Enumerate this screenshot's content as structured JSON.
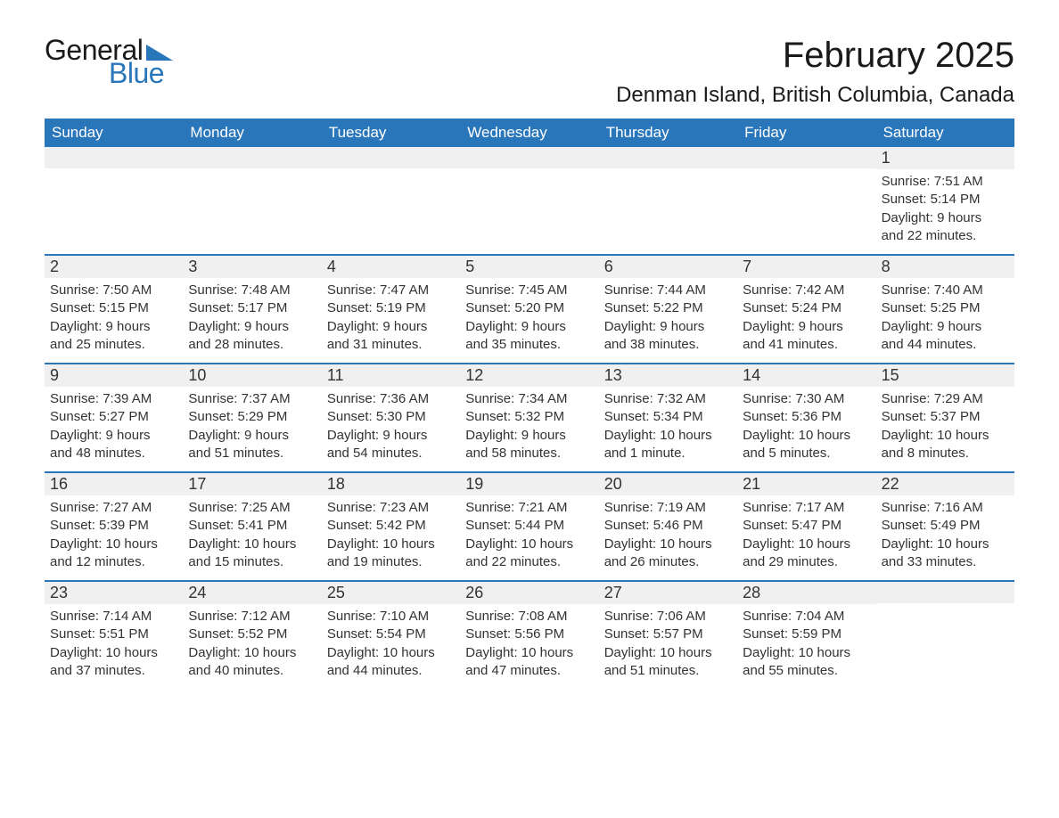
{
  "brand": {
    "word1": "General",
    "word2": "Blue"
  },
  "title": "February 2025",
  "location": "Denman Island, British Columbia, Canada",
  "colors": {
    "header_bg": "#2a76bb",
    "header_text": "#ffffff",
    "row_border": "#2a76bb",
    "date_bg": "#f0f0f0",
    "page_bg": "#ffffff",
    "text": "#222222"
  },
  "typography": {
    "title_fontsize": 40,
    "location_fontsize": 24,
    "weekday_fontsize": 17,
    "date_fontsize": 18,
    "body_fontsize": 15
  },
  "weekdays": [
    "Sunday",
    "Monday",
    "Tuesday",
    "Wednesday",
    "Thursday",
    "Friday",
    "Saturday"
  ],
  "layout": {
    "columns": 7,
    "rows": 5,
    "first_day_index": 6
  },
  "weeks": [
    [
      null,
      null,
      null,
      null,
      null,
      null,
      {
        "date": "1",
        "sunrise": "Sunrise: 7:51 AM",
        "sunset": "Sunset: 5:14 PM",
        "daylight1": "Daylight: 9 hours",
        "daylight2": "and 22 minutes."
      }
    ],
    [
      {
        "date": "2",
        "sunrise": "Sunrise: 7:50 AM",
        "sunset": "Sunset: 5:15 PM",
        "daylight1": "Daylight: 9 hours",
        "daylight2": "and 25 minutes."
      },
      {
        "date": "3",
        "sunrise": "Sunrise: 7:48 AM",
        "sunset": "Sunset: 5:17 PM",
        "daylight1": "Daylight: 9 hours",
        "daylight2": "and 28 minutes."
      },
      {
        "date": "4",
        "sunrise": "Sunrise: 7:47 AM",
        "sunset": "Sunset: 5:19 PM",
        "daylight1": "Daylight: 9 hours",
        "daylight2": "and 31 minutes."
      },
      {
        "date": "5",
        "sunrise": "Sunrise: 7:45 AM",
        "sunset": "Sunset: 5:20 PM",
        "daylight1": "Daylight: 9 hours",
        "daylight2": "and 35 minutes."
      },
      {
        "date": "6",
        "sunrise": "Sunrise: 7:44 AM",
        "sunset": "Sunset: 5:22 PM",
        "daylight1": "Daylight: 9 hours",
        "daylight2": "and 38 minutes."
      },
      {
        "date": "7",
        "sunrise": "Sunrise: 7:42 AM",
        "sunset": "Sunset: 5:24 PM",
        "daylight1": "Daylight: 9 hours",
        "daylight2": "and 41 minutes."
      },
      {
        "date": "8",
        "sunrise": "Sunrise: 7:40 AM",
        "sunset": "Sunset: 5:25 PM",
        "daylight1": "Daylight: 9 hours",
        "daylight2": "and 44 minutes."
      }
    ],
    [
      {
        "date": "9",
        "sunrise": "Sunrise: 7:39 AM",
        "sunset": "Sunset: 5:27 PM",
        "daylight1": "Daylight: 9 hours",
        "daylight2": "and 48 minutes."
      },
      {
        "date": "10",
        "sunrise": "Sunrise: 7:37 AM",
        "sunset": "Sunset: 5:29 PM",
        "daylight1": "Daylight: 9 hours",
        "daylight2": "and 51 minutes."
      },
      {
        "date": "11",
        "sunrise": "Sunrise: 7:36 AM",
        "sunset": "Sunset: 5:30 PM",
        "daylight1": "Daylight: 9 hours",
        "daylight2": "and 54 minutes."
      },
      {
        "date": "12",
        "sunrise": "Sunrise: 7:34 AM",
        "sunset": "Sunset: 5:32 PM",
        "daylight1": "Daylight: 9 hours",
        "daylight2": "and 58 minutes."
      },
      {
        "date": "13",
        "sunrise": "Sunrise: 7:32 AM",
        "sunset": "Sunset: 5:34 PM",
        "daylight1": "Daylight: 10 hours",
        "daylight2": "and 1 minute."
      },
      {
        "date": "14",
        "sunrise": "Sunrise: 7:30 AM",
        "sunset": "Sunset: 5:36 PM",
        "daylight1": "Daylight: 10 hours",
        "daylight2": "and 5 minutes."
      },
      {
        "date": "15",
        "sunrise": "Sunrise: 7:29 AM",
        "sunset": "Sunset: 5:37 PM",
        "daylight1": "Daylight: 10 hours",
        "daylight2": "and 8 minutes."
      }
    ],
    [
      {
        "date": "16",
        "sunrise": "Sunrise: 7:27 AM",
        "sunset": "Sunset: 5:39 PM",
        "daylight1": "Daylight: 10 hours",
        "daylight2": "and 12 minutes."
      },
      {
        "date": "17",
        "sunrise": "Sunrise: 7:25 AM",
        "sunset": "Sunset: 5:41 PM",
        "daylight1": "Daylight: 10 hours",
        "daylight2": "and 15 minutes."
      },
      {
        "date": "18",
        "sunrise": "Sunrise: 7:23 AM",
        "sunset": "Sunset: 5:42 PM",
        "daylight1": "Daylight: 10 hours",
        "daylight2": "and 19 minutes."
      },
      {
        "date": "19",
        "sunrise": "Sunrise: 7:21 AM",
        "sunset": "Sunset: 5:44 PM",
        "daylight1": "Daylight: 10 hours",
        "daylight2": "and 22 minutes."
      },
      {
        "date": "20",
        "sunrise": "Sunrise: 7:19 AM",
        "sunset": "Sunset: 5:46 PM",
        "daylight1": "Daylight: 10 hours",
        "daylight2": "and 26 minutes."
      },
      {
        "date": "21",
        "sunrise": "Sunrise: 7:17 AM",
        "sunset": "Sunset: 5:47 PM",
        "daylight1": "Daylight: 10 hours",
        "daylight2": "and 29 minutes."
      },
      {
        "date": "22",
        "sunrise": "Sunrise: 7:16 AM",
        "sunset": "Sunset: 5:49 PM",
        "daylight1": "Daylight: 10 hours",
        "daylight2": "and 33 minutes."
      }
    ],
    [
      {
        "date": "23",
        "sunrise": "Sunrise: 7:14 AM",
        "sunset": "Sunset: 5:51 PM",
        "daylight1": "Daylight: 10 hours",
        "daylight2": "and 37 minutes."
      },
      {
        "date": "24",
        "sunrise": "Sunrise: 7:12 AM",
        "sunset": "Sunset: 5:52 PM",
        "daylight1": "Daylight: 10 hours",
        "daylight2": "and 40 minutes."
      },
      {
        "date": "25",
        "sunrise": "Sunrise: 7:10 AM",
        "sunset": "Sunset: 5:54 PM",
        "daylight1": "Daylight: 10 hours",
        "daylight2": "and 44 minutes."
      },
      {
        "date": "26",
        "sunrise": "Sunrise: 7:08 AM",
        "sunset": "Sunset: 5:56 PM",
        "daylight1": "Daylight: 10 hours",
        "daylight2": "and 47 minutes."
      },
      {
        "date": "27",
        "sunrise": "Sunrise: 7:06 AM",
        "sunset": "Sunset: 5:57 PM",
        "daylight1": "Daylight: 10 hours",
        "daylight2": "and 51 minutes."
      },
      {
        "date": "28",
        "sunrise": "Sunrise: 7:04 AM",
        "sunset": "Sunset: 5:59 PM",
        "daylight1": "Daylight: 10 hours",
        "daylight2": "and 55 minutes."
      },
      null
    ]
  ]
}
